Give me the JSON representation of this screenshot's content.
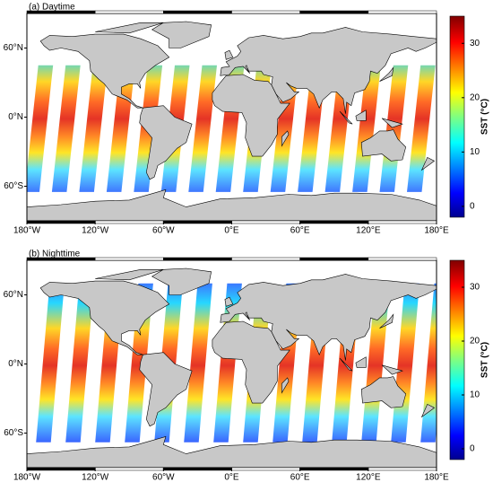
{
  "xlim": [
    -180,
    180
  ],
  "ylim": [
    -90,
    90
  ],
  "panels": [
    {
      "label": "(a) Daytime",
      "lon_ticks": [
        {
          "value": -180,
          "label": "180°W"
        },
        {
          "value": -120,
          "label": "120°W"
        },
        {
          "value": -60,
          "label": "60°W"
        },
        {
          "value": 0,
          "label": "0°E"
        },
        {
          "value": 60,
          "label": "60°E"
        },
        {
          "value": 120,
          "label": "120°E"
        },
        {
          "value": 180,
          "label": "180°E"
        }
      ],
      "lat_ticks": [
        {
          "value": 60,
          "label": "60°N"
        },
        {
          "value": 0,
          "label": "0°N"
        },
        {
          "value": -60,
          "label": "60°S"
        }
      ],
      "colorbar": {
        "label": "SST (°C)",
        "range": [
          -2,
          35
        ],
        "ticks": [
          0,
          10,
          20,
          30
        ]
      }
    },
    {
      "label": "(b) Nighttime",
      "lon_ticks": [
        {
          "value": -180,
          "label": "180°W"
        },
        {
          "value": -120,
          "label": "120°W"
        },
        {
          "value": -60,
          "label": "60°W"
        },
        {
          "value": 0,
          "label": "0°E"
        },
        {
          "value": 60,
          "label": "60°E"
        },
        {
          "value": 120,
          "label": "120°E"
        },
        {
          "value": 180,
          "label": "180°E"
        }
      ],
      "lat_ticks": [
        {
          "value": 60,
          "label": "60°N"
        },
        {
          "value": 0,
          "label": "0°N"
        },
        {
          "value": -60,
          "label": "60°S"
        }
      ],
      "colorbar": {
        "label": "SST (°C)",
        "range": [
          -2,
          35
        ],
        "ticks": [
          0,
          10,
          20,
          30
        ]
      }
    }
  ]
}
